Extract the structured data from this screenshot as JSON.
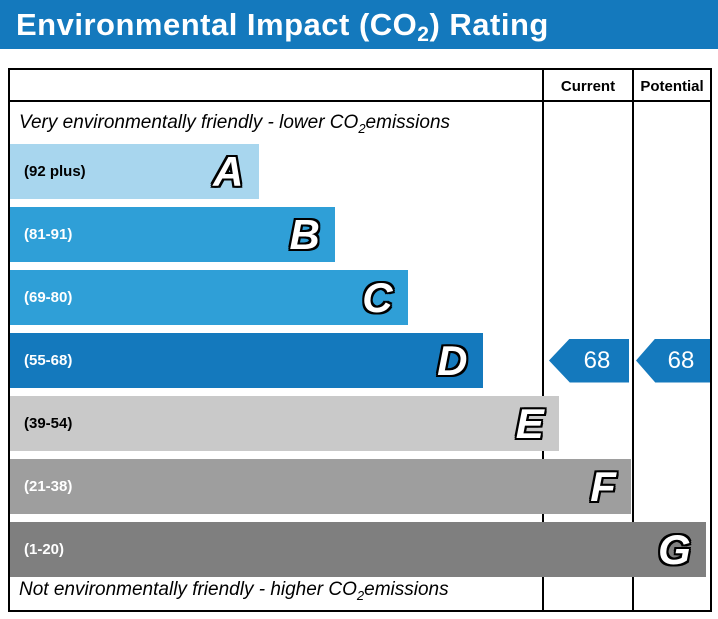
{
  "title": {
    "prefix": "Environmental Impact (CO",
    "sub": "2",
    "suffix": ") Rating"
  },
  "columns": {
    "current": "Current",
    "potential": "Potential"
  },
  "captions": {
    "top": {
      "prefix": "Very environmentally friendly - lower CO",
      "sub": "2",
      "suffix": " emissions"
    },
    "bottom": {
      "prefix": "Not environmentally friendly - higher CO",
      "sub": "2",
      "suffix": " emissions"
    }
  },
  "chart_data": {
    "type": "bar",
    "title": "Environmental Impact (CO2) Rating",
    "header_color": "#1479bd",
    "arrow_color": "#1479bd",
    "bands": [
      {
        "letter": "A",
        "range_label": "(92 plus)",
        "min": 92,
        "max": 100,
        "color": "#a8d6ee",
        "text_color": "#000000",
        "width_pct": 35.5
      },
      {
        "letter": "B",
        "range_label": "(81-91)",
        "min": 81,
        "max": 91,
        "color": "#2f9fd7",
        "text_color": "#ffffff",
        "width_pct": 46.4
      },
      {
        "letter": "C",
        "range_label": "(69-80)",
        "min": 69,
        "max": 80,
        "color": "#2f9fd7",
        "text_color": "#ffffff",
        "width_pct": 56.8
      },
      {
        "letter": "D",
        "range_label": "(55-68)",
        "min": 55,
        "max": 68,
        "color": "#1479bd",
        "text_color": "#ffffff",
        "width_pct": 67.5
      },
      {
        "letter": "E",
        "range_label": "(39-54)",
        "min": 39,
        "max": 54,
        "color": "#c9c9c9",
        "text_color": "#000000",
        "width_pct": 78.4
      },
      {
        "letter": "F",
        "range_label": "(21-38)",
        "min": 21,
        "max": 38,
        "color": "#9e9e9e",
        "text_color": "#ffffff",
        "width_pct": 88.7
      },
      {
        "letter": "G",
        "range_label": "(1-20)",
        "min": 1,
        "max": 20,
        "color": "#7f7f7f",
        "text_color": "#ffffff",
        "width_pct": 99.4
      }
    ],
    "current": {
      "value": "68",
      "band": "D"
    },
    "potential": {
      "value": "68",
      "band": "D"
    }
  }
}
